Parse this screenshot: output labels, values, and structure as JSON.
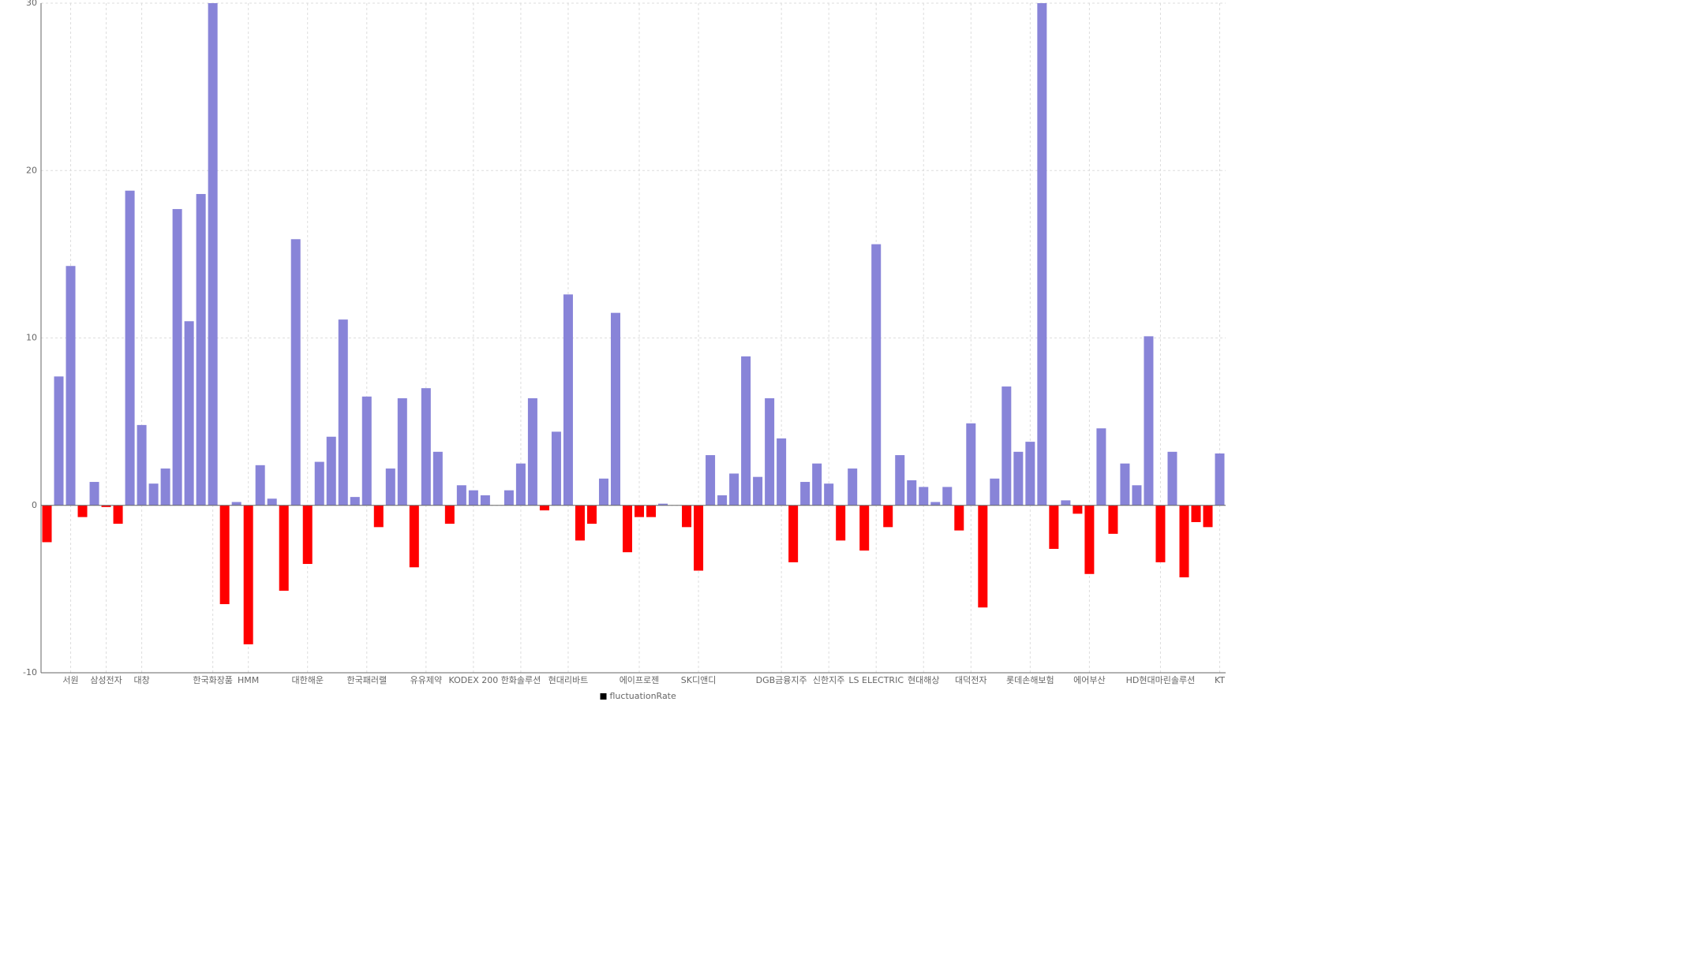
{
  "chart_data": {
    "type": "bar",
    "categories": [
      null,
      null,
      "서원",
      null,
      null,
      "삼성전자",
      null,
      null,
      "대창",
      null,
      null,
      null,
      null,
      null,
      "한국화장품",
      null,
      null,
      "HMM",
      null,
      null,
      null,
      null,
      "대한해운",
      null,
      null,
      null,
      null,
      "한국패러랠",
      null,
      null,
      null,
      null,
      "유유제약",
      null,
      null,
      null,
      "KODEX 200",
      null,
      null,
      null,
      "한화솔루션",
      null,
      null,
      null,
      "현대리바트",
      null,
      null,
      null,
      null,
      null,
      "에이프로젠",
      null,
      null,
      null,
      null,
      "SK디앤디",
      null,
      null,
      null,
      null,
      null,
      null,
      "DGB금융지주",
      null,
      null,
      null,
      "신한지주",
      null,
      null,
      null,
      "LS ELECTRIC",
      null,
      null,
      null,
      "현대해상",
      null,
      null,
      null,
      "대덕전자",
      null,
      null,
      null,
      null,
      "롯데손해보험",
      null,
      null,
      null,
      null,
      "에어부산",
      null,
      null,
      null,
      null,
      null,
      "HD현대마린솔루션",
      null,
      null,
      null,
      null,
      "KT"
    ],
    "series": [
      {
        "name": "fluctuationRate",
        "color": "#8884d8",
        "negative_color": "#ff0000",
        "values": [
          -2.2,
          7.7,
          14.3,
          -0.7,
          1.4,
          -0.1,
          -1.1,
          18.8,
          4.8,
          1.3,
          2.2,
          17.7,
          11.0,
          18.6,
          30,
          -5.9,
          0.2,
          -8.3,
          2.4,
          0.4,
          -5.1,
          15.9,
          -3.5,
          2.6,
          4.1,
          11.1,
          0.5,
          6.5,
          -1.3,
          2.2,
          6.4,
          -3.7,
          7.0,
          3.2,
          -1.1,
          1.2,
          0.9,
          0.6,
          0,
          0.9,
          2.5,
          6.4,
          -0.3,
          4.4,
          12.6,
          -2.1,
          -1.1,
          1.6,
          11.5,
          -2.8,
          -0.7,
          -0.7,
          0.1,
          0,
          -1.3,
          -3.9,
          3.0,
          0.6,
          1.9,
          8.9,
          1.7,
          6.4,
          4.0,
          -3.4,
          1.4,
          2.5,
          1.3,
          -2.1,
          2.2,
          -2.7,
          15.6,
          -1.3,
          3.0,
          1.5,
          1.1,
          0.2,
          1.1,
          -1.5,
          4.9,
          -6.1,
          1.6,
          7.1,
          3.2,
          3.8,
          30,
          -2.6,
          0.3,
          -0.5,
          -4.1,
          4.6,
          -1.7,
          2.5,
          1.2,
          10.1,
          -3.4,
          3.2,
          -4.3,
          -1.0,
          -1.3,
          3.1
        ]
      }
    ],
    "ylim": [
      -10,
      30
    ],
    "yticks": [
      -10,
      0,
      10,
      20,
      30
    ],
    "grid": true,
    "legend": "bottom"
  }
}
